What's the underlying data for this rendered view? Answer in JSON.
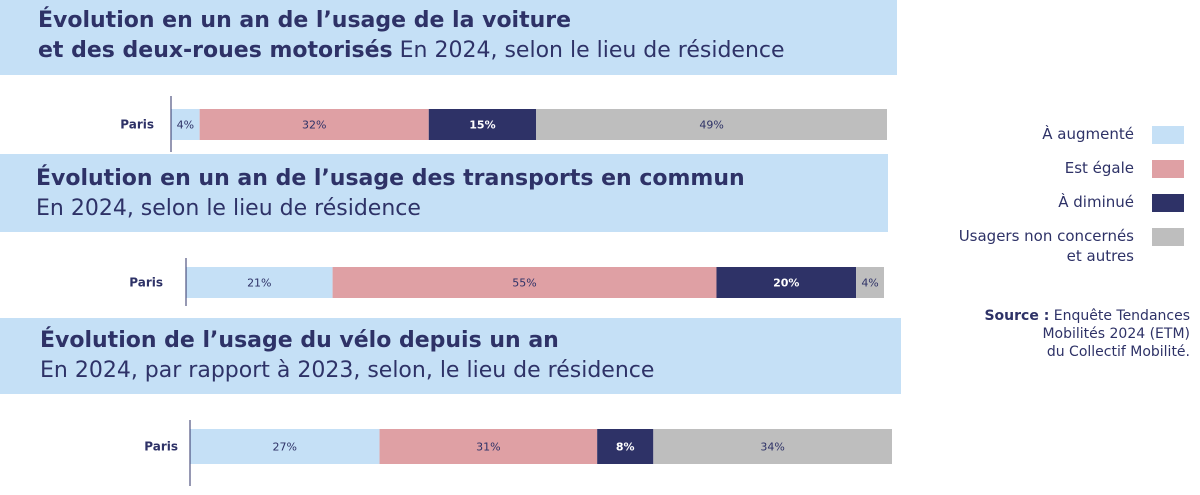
{
  "panels": [
    {
      "title_bold": "Évolution en un an de l’usage de la voiture",
      "title_bold_2": "et des deux-roues motorisés",
      "subtitle": " En 2024, selon le lieu de résidence"
    },
    {
      "title_bold": "Évolution en un an de l’usage des transports en commun",
      "subtitle": "En 2024, selon le lieu de résidence"
    },
    {
      "title_bold": "Évolution de l’usage du vélo depuis un an",
      "subtitle": "En 2024, par rapport à 2023, selon, le lieu de résidence"
    }
  ],
  "legend": [
    {
      "label": "À augmenté",
      "color": "#c5e0f6"
    },
    {
      "label": "Est égale",
      "color": "#dfa0a4"
    },
    {
      "label": "À diminué",
      "color": "#2e3267"
    },
    {
      "label_line1": "Usagers non concernés",
      "label_line2": "et autres",
      "color": "#bebebe"
    }
  ],
  "source": {
    "label": "Source :",
    "text_line1": " Enquête Tendances",
    "text_line2": "Mobilités 2024 (ETM)",
    "text_line3": "du Collectif Mobilité."
  },
  "chart_data": [
    {
      "type": "bar",
      "orientation": "horizontal-stacked",
      "categories": [
        "Paris"
      ],
      "series": [
        {
          "name": "À augmenté",
          "values": [
            4
          ],
          "label": "4%"
        },
        {
          "name": "Est égale",
          "values": [
            32
          ],
          "label": "32%"
        },
        {
          "name": "À diminué",
          "values": [
            15
          ],
          "label": "15%"
        },
        {
          "name": "Usagers non concernés et autres",
          "values": [
            49
          ],
          "label": "49%"
        }
      ]
    },
    {
      "type": "bar",
      "orientation": "horizontal-stacked",
      "categories": [
        "Paris"
      ],
      "series": [
        {
          "name": "À augmenté",
          "values": [
            21
          ],
          "label": "21%"
        },
        {
          "name": "Est égale",
          "values": [
            55
          ],
          "label": "55%"
        },
        {
          "name": "À diminué",
          "values": [
            20
          ],
          "label": "20%"
        },
        {
          "name": "Usagers non concernés et autres",
          "values": [
            4
          ],
          "label": "4%"
        }
      ]
    },
    {
      "type": "bar",
      "orientation": "horizontal-stacked",
      "categories": [
        "Paris"
      ],
      "series": [
        {
          "name": "À augmenté",
          "values": [
            27
          ],
          "label": "27%"
        },
        {
          "name": "Est égale",
          "values": [
            31
          ],
          "label": "31%"
        },
        {
          "name": "À diminué",
          "values": [
            8
          ],
          "label": "8%"
        },
        {
          "name": "Usagers non concernés et autres",
          "values": [
            34
          ],
          "label": "34%"
        }
      ]
    }
  ]
}
